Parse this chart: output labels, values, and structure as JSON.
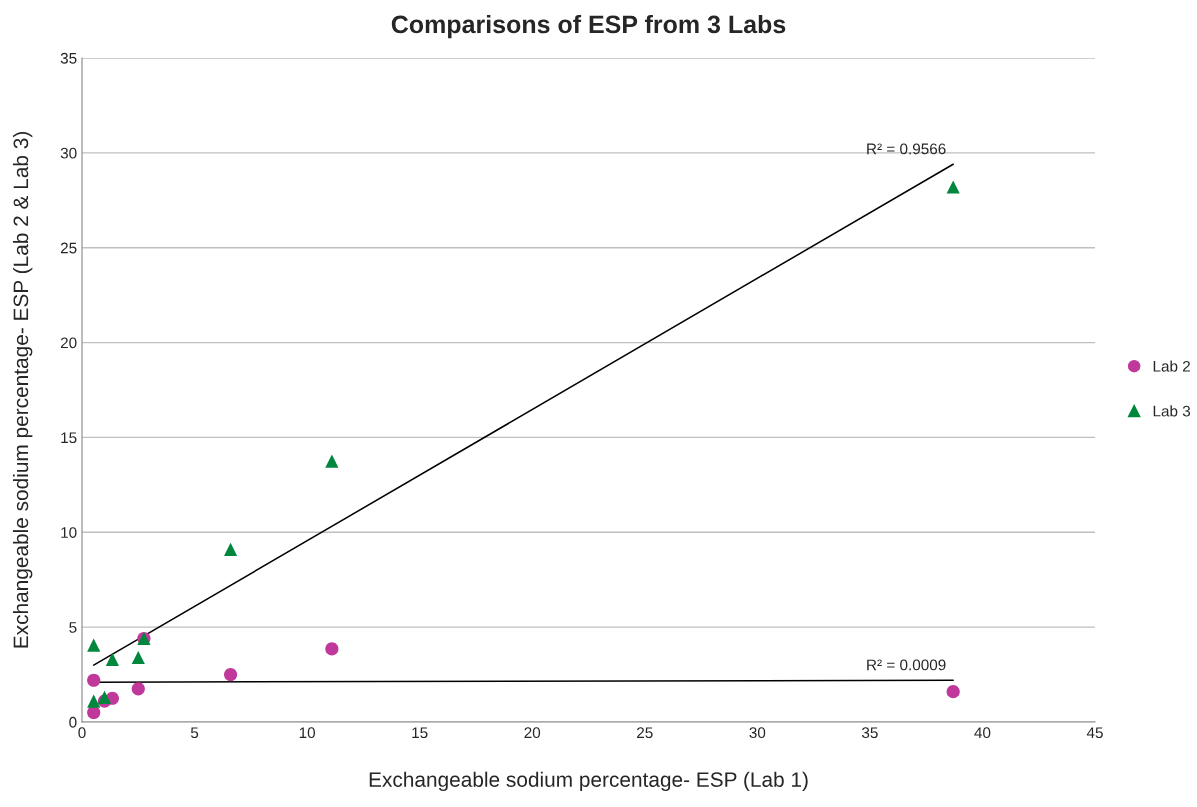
{
  "chart_data": {
    "type": "scatter",
    "title": "Comparisons of ESP from 3 Labs",
    "xlabel": "Exchangeable sodium percentage- ESP (Lab 1)",
    "ylabel": "Exchangeable sodium percentage- ESP (Lab 2 & Lab 3)",
    "series": [
      {
        "name": "Lab 2",
        "color": "#c0399a",
        "marker": "circle",
        "x": [
          0.52,
          0.52,
          1.0,
          1.35,
          2.5,
          2.75,
          6.6,
          11.1,
          38.7
        ],
        "values": [
          2.2,
          0.5,
          1.1,
          1.25,
          1.75,
          4.4,
          2.5,
          3.85,
          1.6
        ]
      },
      {
        "name": "Lab 3",
        "color": "#00873e",
        "marker": "triangle",
        "x": [
          0.52,
          0.52,
          1.0,
          1.35,
          2.5,
          2.75,
          6.6,
          11.1,
          38.7
        ],
        "values": [
          4.05,
          1.1,
          1.3,
          3.3,
          3.4,
          4.4,
          9.1,
          13.75,
          28.2
        ]
      },
      {
        "type": "line",
        "color": "#000000",
        "x": [
          0.52,
          38.7
        ],
        "values": [
          2.1,
          2.2
        ]
      },
      {
        "type": "line",
        "color": "#000000",
        "x": [
          0.52,
          38.7
        ],
        "values": [
          3.0,
          29.4
        ]
      }
    ],
    "annotations": [
      {
        "text": "R² = 0.0009",
        "x": 38.7,
        "y": 2.2
      },
      {
        "text": "R² = 0.9566",
        "x": 38.7,
        "y": 29.4
      }
    ],
    "xlim": [
      0,
      45
    ],
    "xticks": [
      0,
      5,
      10,
      15,
      20,
      25,
      30,
      35,
      40,
      45
    ],
    "ylim": [
      0,
      35
    ],
    "yticks": [
      0,
      5,
      10,
      15,
      20,
      25,
      30,
      35
    ],
    "grid": "y",
    "legend": "right"
  }
}
